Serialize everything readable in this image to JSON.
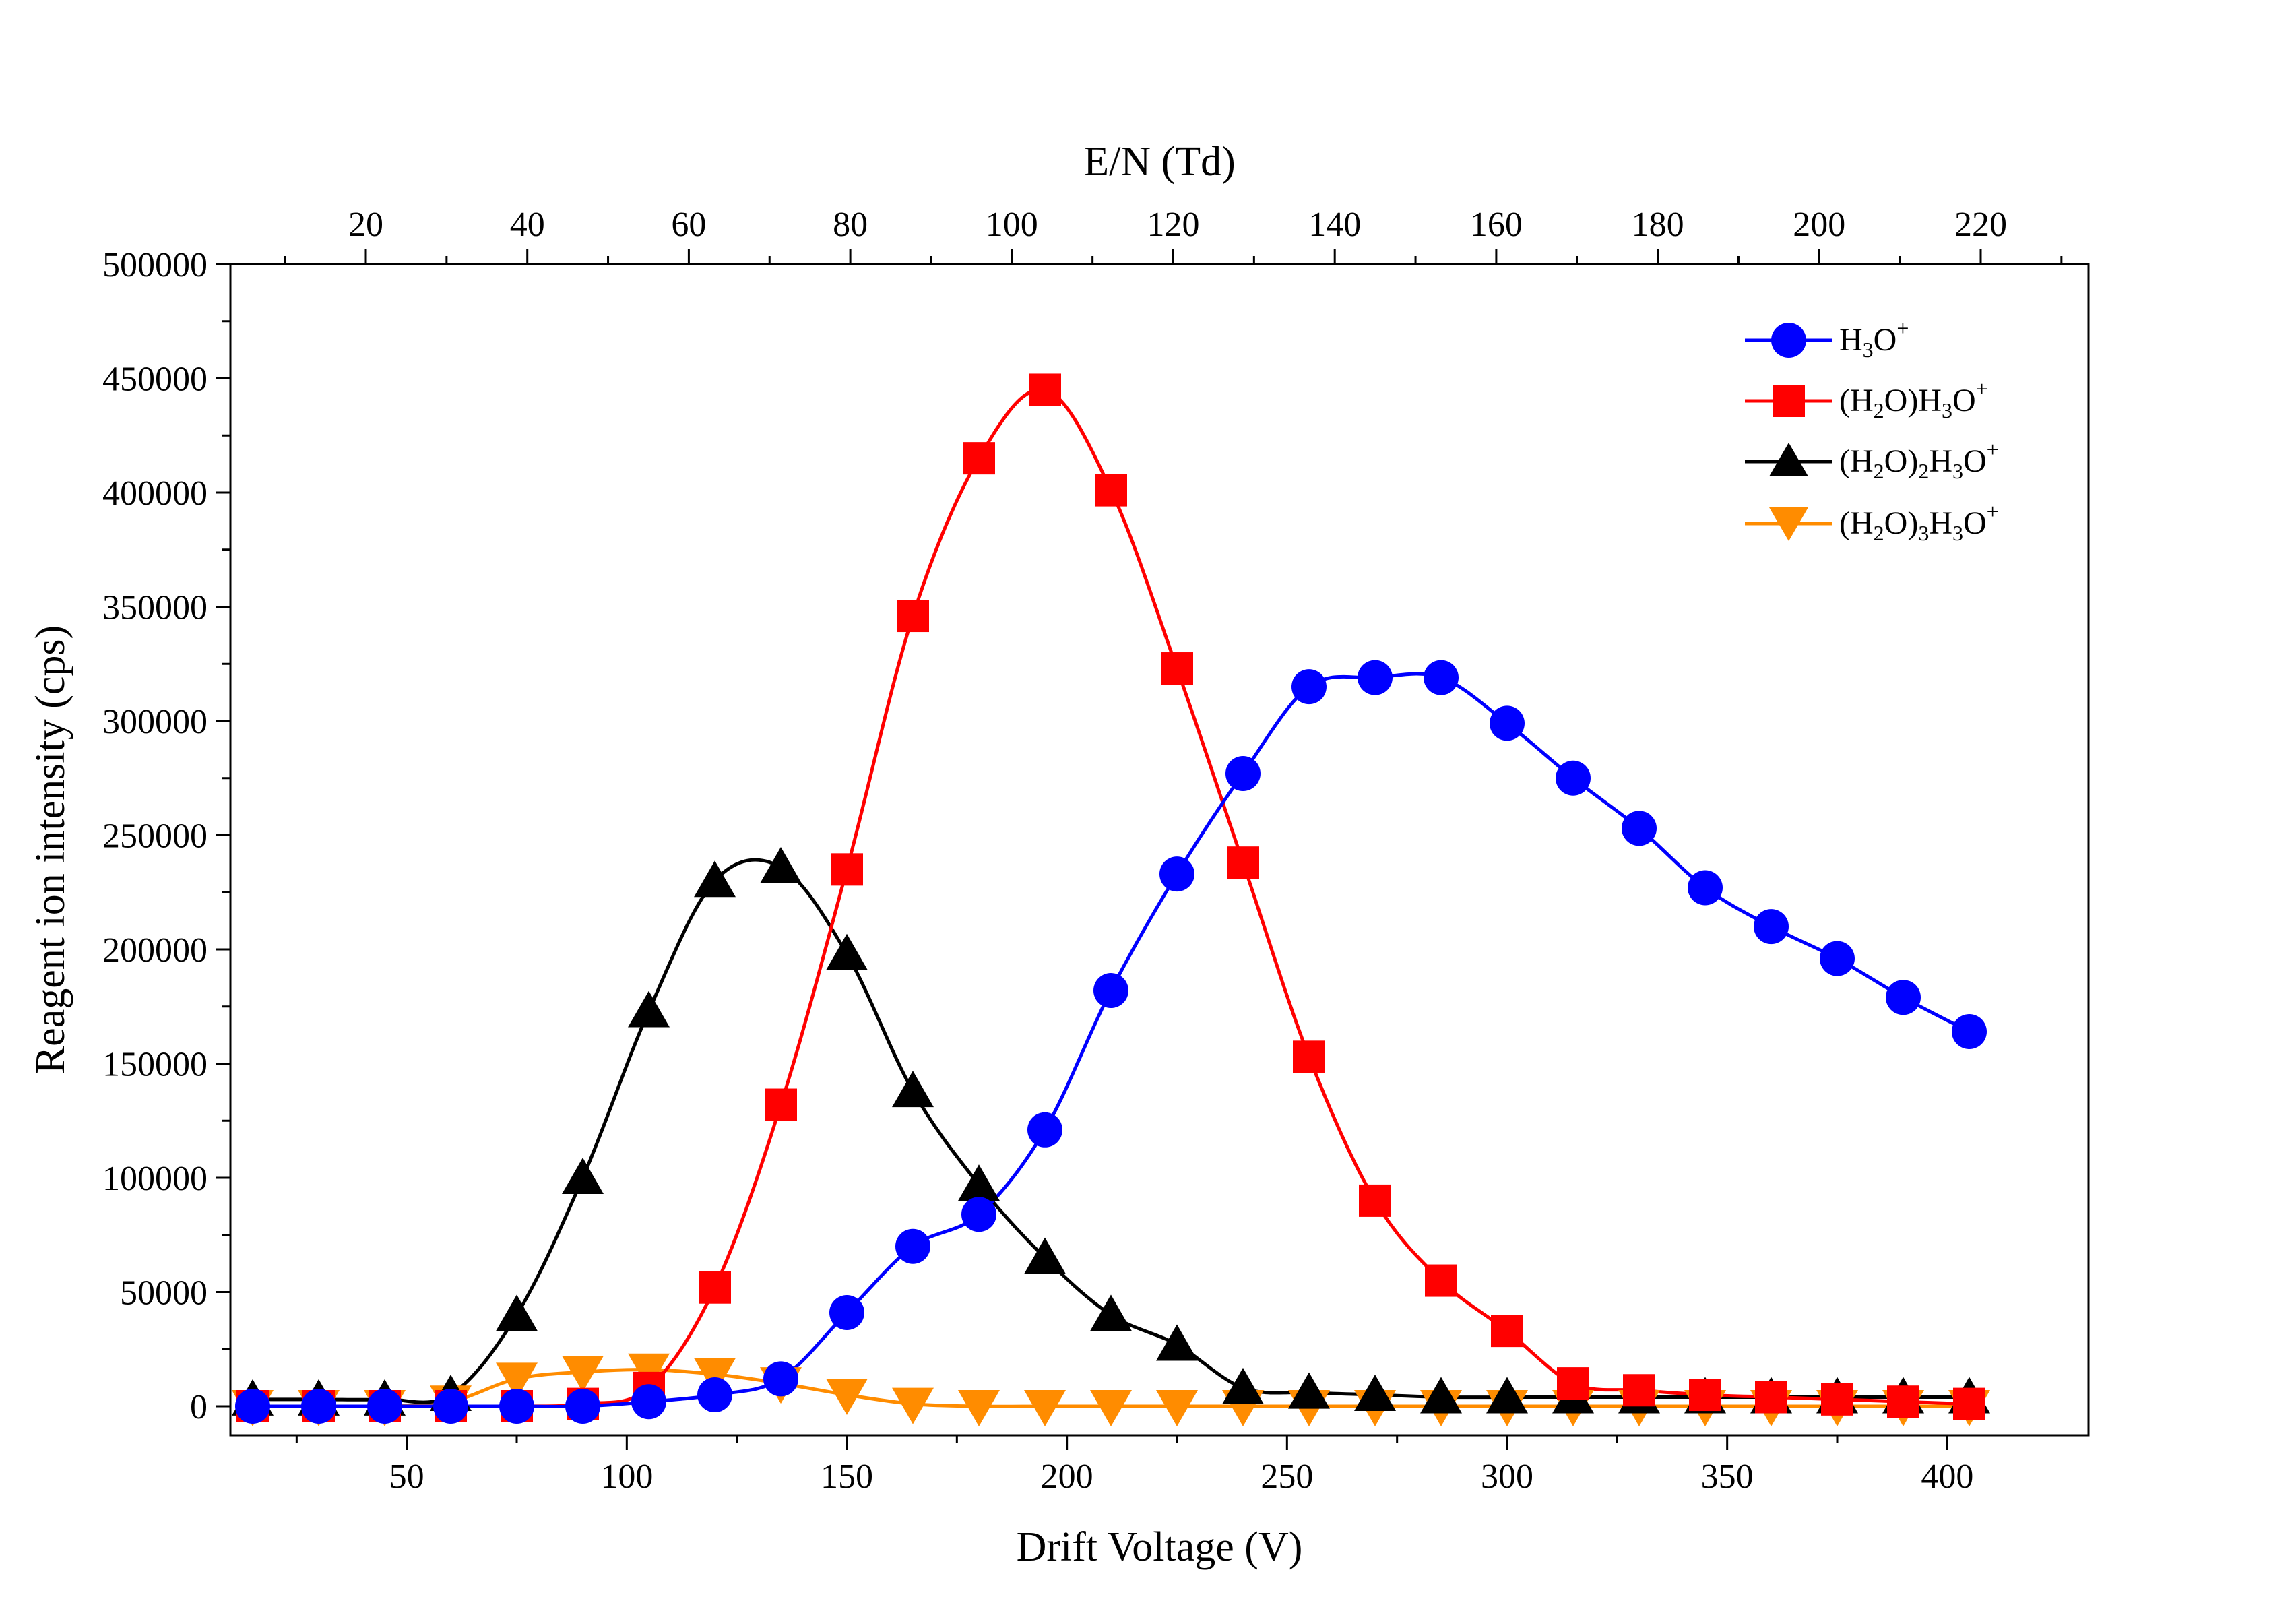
{
  "chart_data": {
    "type": "line",
    "xlabel": "Drift Voltage (V)",
    "ylabel": "Reagent ion intensity (cps)",
    "x2label": "E/N (Td)",
    "xlim": [
      10,
      415
    ],
    "ylim": [
      0,
      500000
    ],
    "x_ticks": [
      50,
      100,
      150,
      200,
      250,
      300,
      350,
      400
    ],
    "x_tick_labels": [
      "50",
      "100",
      "150",
      "200",
      "250",
      "300",
      "350",
      "400"
    ],
    "y_ticks": [
      0,
      50000,
      100000,
      150000,
      200000,
      250000,
      300000,
      350000,
      400000,
      450000,
      500000
    ],
    "y_tick_labels": [
      "0",
      "50000",
      "100000",
      "150000",
      "200000",
      "250000",
      "300000",
      "350000",
      "400000",
      "450000",
      "500000"
    ],
    "x2_ticks": [
      20,
      40,
      60,
      80,
      100,
      120,
      140,
      160,
      180,
      200,
      220
    ],
    "x2_tick_labels": [
      "20",
      "40",
      "60",
      "80",
      "100",
      "120",
      "140",
      "160",
      "180",
      "200",
      "220"
    ],
    "x2_scale": "linear, 220 Td at 405 V",
    "grid": false,
    "legend_position": "top-right",
    "x": [
      15,
      30,
      45,
      60,
      75,
      90,
      105,
      120,
      135,
      150,
      165,
      180,
      195,
      210,
      225,
      240,
      255,
      270,
      285,
      300,
      315,
      330,
      345,
      360,
      375,
      390,
      405
    ],
    "series": [
      {
        "name_base": "H",
        "name_sub": "3",
        "name_mid": "O",
        "name_sup": "+",
        "color": "#0000FF",
        "marker": "circle",
        "values": [
          0,
          0,
          0,
          0,
          0,
          0,
          2000,
          5000,
          12000,
          41000,
          70000,
          84000,
          121000,
          182000,
          233000,
          277000,
          315000,
          319000,
          319000,
          299000,
          275000,
          253000,
          227000,
          210000,
          196000,
          179000,
          164000
        ]
      },
      {
        "name_pre": "(H",
        "name_sub1": "2",
        "name_mid1": "O)H",
        "name_sub2": "3",
        "name_mid2": "O",
        "name_sup": "+",
        "color": "#FF0000",
        "marker": "square",
        "values": [
          0,
          0,
          0,
          0,
          0,
          1000,
          8000,
          52000,
          132000,
          235000,
          346000,
          415000,
          445000,
          401000,
          323000,
          238000,
          153000,
          90000,
          55000,
          33000,
          10000,
          7000,
          5000,
          4000,
          3000,
          2000,
          1000
        ]
      },
      {
        "name_pre": "(H",
        "name_sub1": "2",
        "name_mid1": "O)",
        "name_sub2": "2",
        "name_mid2": "H",
        "name_sub3": "3",
        "name_mid3": "O",
        "name_sup": "+",
        "color": "#000000",
        "marker": "triangle-up",
        "values": [
          3000,
          3000,
          3000,
          5000,
          40000,
          100000,
          173000,
          230000,
          236000,
          198000,
          138000,
          97000,
          65000,
          40000,
          27000,
          8000,
          6000,
          5000,
          4000,
          4000,
          4000,
          4000,
          4000,
          4000,
          4000,
          4000,
          4000
        ]
      },
      {
        "name_pre": "(H",
        "name_sub1": "2",
        "name_mid1": "O)",
        "name_sub2": "3",
        "name_mid2": "H",
        "name_sub3": "3",
        "name_mid3": "O",
        "name_sup": "+",
        "color": "#FF8C00",
        "marker": "triangle-down",
        "values": [
          0,
          0,
          0,
          2000,
          12000,
          15000,
          16000,
          14000,
          10000,
          5000,
          1000,
          0,
          0,
          0,
          0,
          0,
          0,
          0,
          0,
          0,
          0,
          0,
          0,
          0,
          0,
          0,
          0
        ]
      }
    ]
  }
}
